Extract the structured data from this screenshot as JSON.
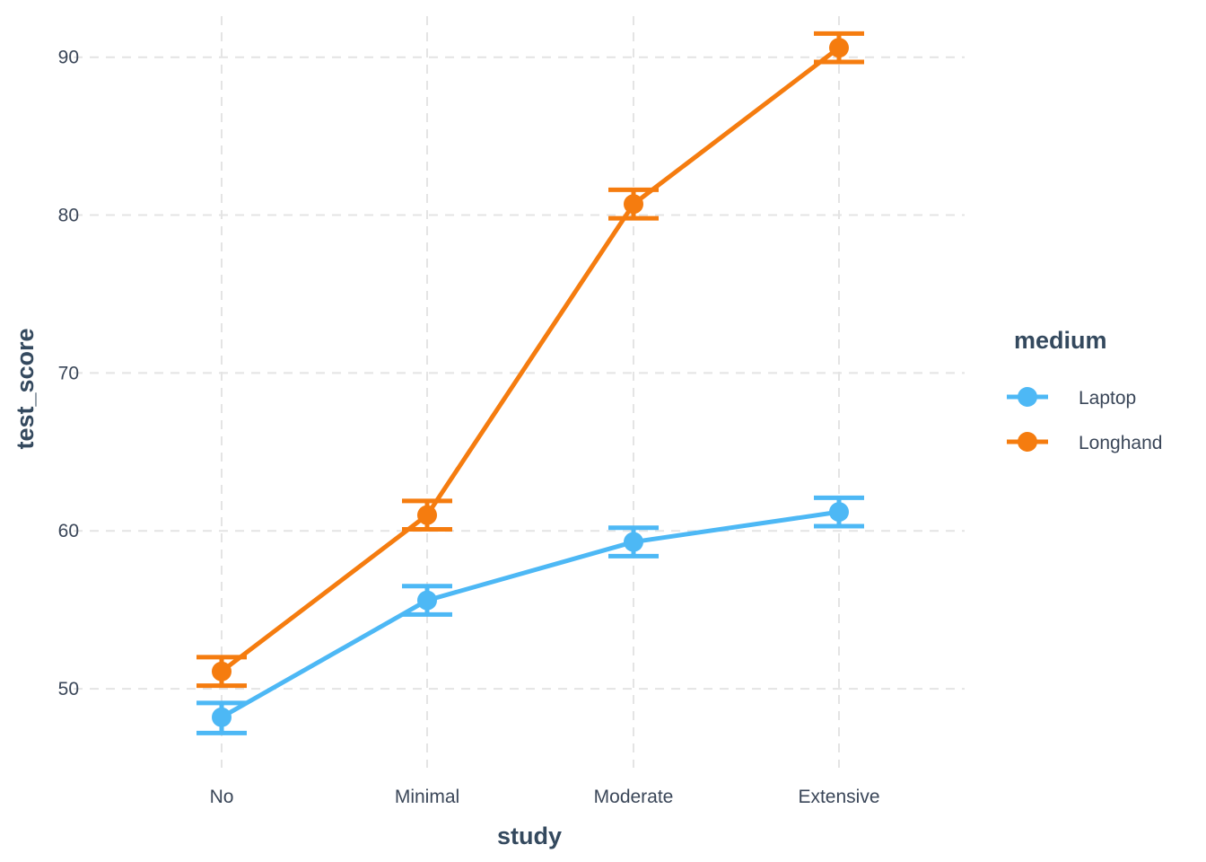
{
  "chart_data": {
    "type": "line",
    "xlabel": "study",
    "ylabel": "test_score",
    "categories": [
      "No",
      "Minimal",
      "Moderate",
      "Extensive"
    ],
    "ylim": [
      45,
      92.6
    ],
    "yticks": [
      50,
      60,
      70,
      80,
      90
    ],
    "grid": true,
    "error_bars": true,
    "legend": {
      "title": "medium",
      "placement": "right"
    },
    "series": [
      {
        "name": "Laptop",
        "color": "#4db8f5",
        "values": [
          48.2,
          55.6,
          59.3,
          61.2
        ],
        "err_low": [
          47.2,
          54.7,
          58.4,
          60.3
        ],
        "err_high": [
          49.1,
          56.5,
          60.2,
          62.1
        ]
      },
      {
        "name": "Longhand",
        "color": "#f57c0f",
        "values": [
          51.1,
          61.0,
          80.7,
          90.6
        ],
        "err_low": [
          50.2,
          60.1,
          79.8,
          89.7
        ],
        "err_high": [
          52.0,
          61.9,
          81.6,
          91.5
        ]
      }
    ]
  }
}
